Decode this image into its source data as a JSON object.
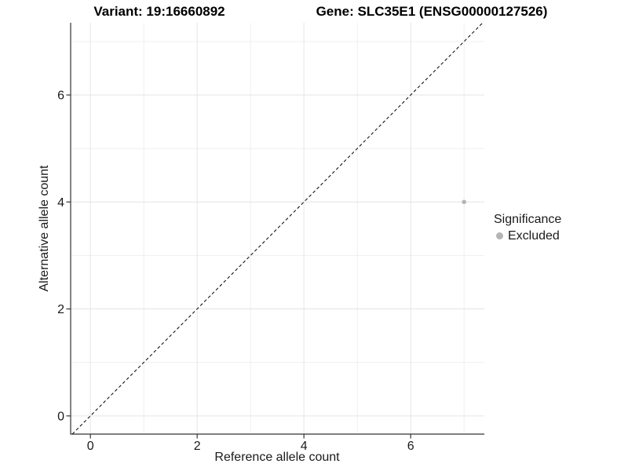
{
  "titles": {
    "variant": "Variant: 19:16660892",
    "gene": "Gene: SLC35E1 (ENSG00000127526)"
  },
  "chart_data": {
    "type": "scatter",
    "xlabel": "Reference allele count",
    "ylabel": "Alternative allele count",
    "xlim": [
      -0.37,
      7.38
    ],
    "ylim": [
      -0.34,
      7.35
    ],
    "x_major_ticks": [
      0,
      2,
      4,
      6
    ],
    "y_major_ticks": [
      0,
      2,
      4,
      6
    ],
    "x_minor_gridlines": [
      1,
      3,
      5,
      7
    ],
    "y_minor_gridlines": [
      1,
      3,
      5,
      7
    ],
    "grid": true,
    "legend_position": "right",
    "identity_line": {
      "style": "dashed",
      "color": "#000000"
    },
    "series": [
      {
        "name": "Excluded",
        "color": "#b5b5b5",
        "points": [
          {
            "x": 7,
            "y": 4
          }
        ]
      }
    ],
    "legend": {
      "title": "Significance",
      "entries": [
        {
          "label": "Excluded",
          "color": "#b5b5b5"
        }
      ]
    }
  },
  "colors": {
    "major_grid": "#e4e4e4",
    "minor_grid": "#efefef",
    "axis_line": "#333333",
    "tick_text": "#1a1a1a",
    "point": "#b5b5b5"
  }
}
